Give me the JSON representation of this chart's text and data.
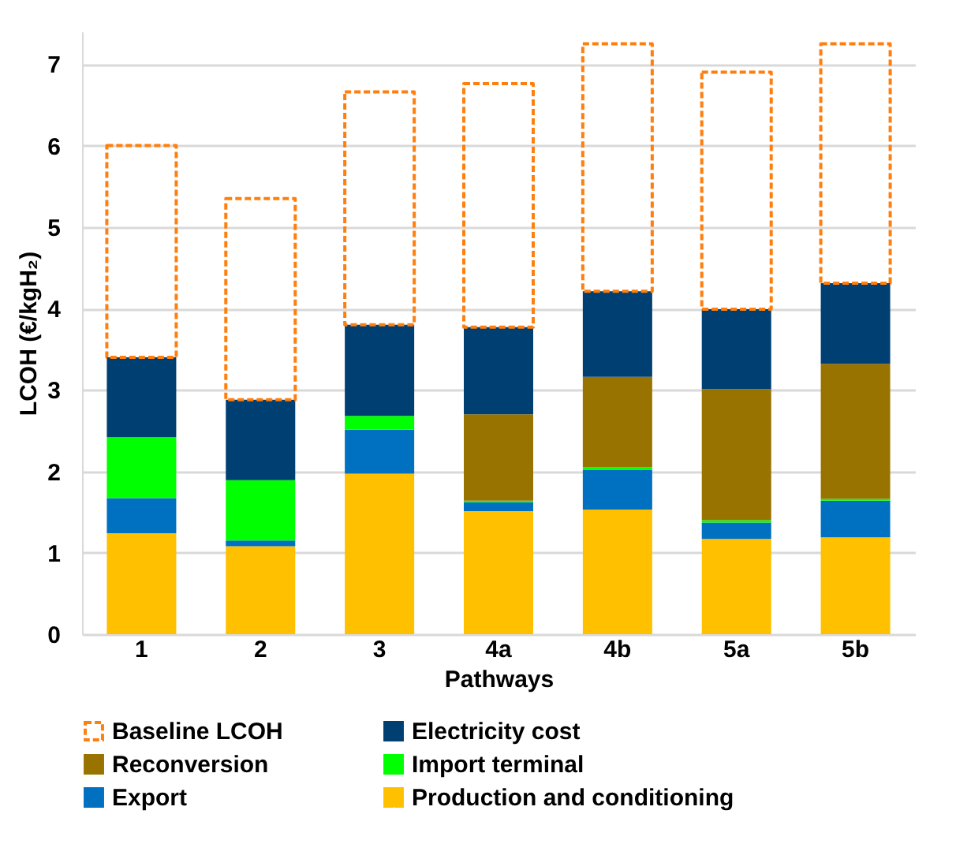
{
  "chart_data": {
    "type": "bar",
    "stacked": true,
    "xlabel": "Pathways",
    "ylabel": "LCOH (€/kgH₂)",
    "categories": [
      "1",
      "2",
      "3",
      "4a",
      "4b",
      "5a",
      "5b"
    ],
    "series": [
      {
        "name": "Production and conditioning",
        "color": "#ffc000",
        "values": [
          1.24,
          1.08,
          1.97,
          1.51,
          1.53,
          1.17,
          1.19
        ]
      },
      {
        "name": "Export",
        "color": "#0070c0",
        "values": [
          0.43,
          0.07,
          0.54,
          0.11,
          0.49,
          0.2,
          0.45
        ]
      },
      {
        "name": "Import terminal",
        "color": "#00ff00",
        "values": [
          0.75,
          0.74,
          0.17,
          0.02,
          0.03,
          0.03,
          0.02
        ]
      },
      {
        "name": "Reconversion",
        "color": "#997300",
        "values": [
          0,
          0,
          0,
          1.06,
          1.11,
          1.61,
          1.66
        ]
      },
      {
        "name": "Electricity cost",
        "color": "#003f72",
        "values": [
          0.98,
          0.99,
          1.12,
          1.07,
          1.05,
          0.98,
          0.99
        ]
      },
      {
        "name": "Baseline LCOH",
        "color": "#ff7f0e",
        "line_style": "dashed",
        "values": [
          2.6,
          2.47,
          2.86,
          2.99,
          3.04,
          2.91,
          2.94
        ]
      }
    ],
    "ylim": [
      0,
      7.4
    ],
    "yticks": [
      0,
      1,
      2,
      3,
      4,
      5,
      6,
      7
    ],
    "grid": "y",
    "legend": "bottom"
  }
}
